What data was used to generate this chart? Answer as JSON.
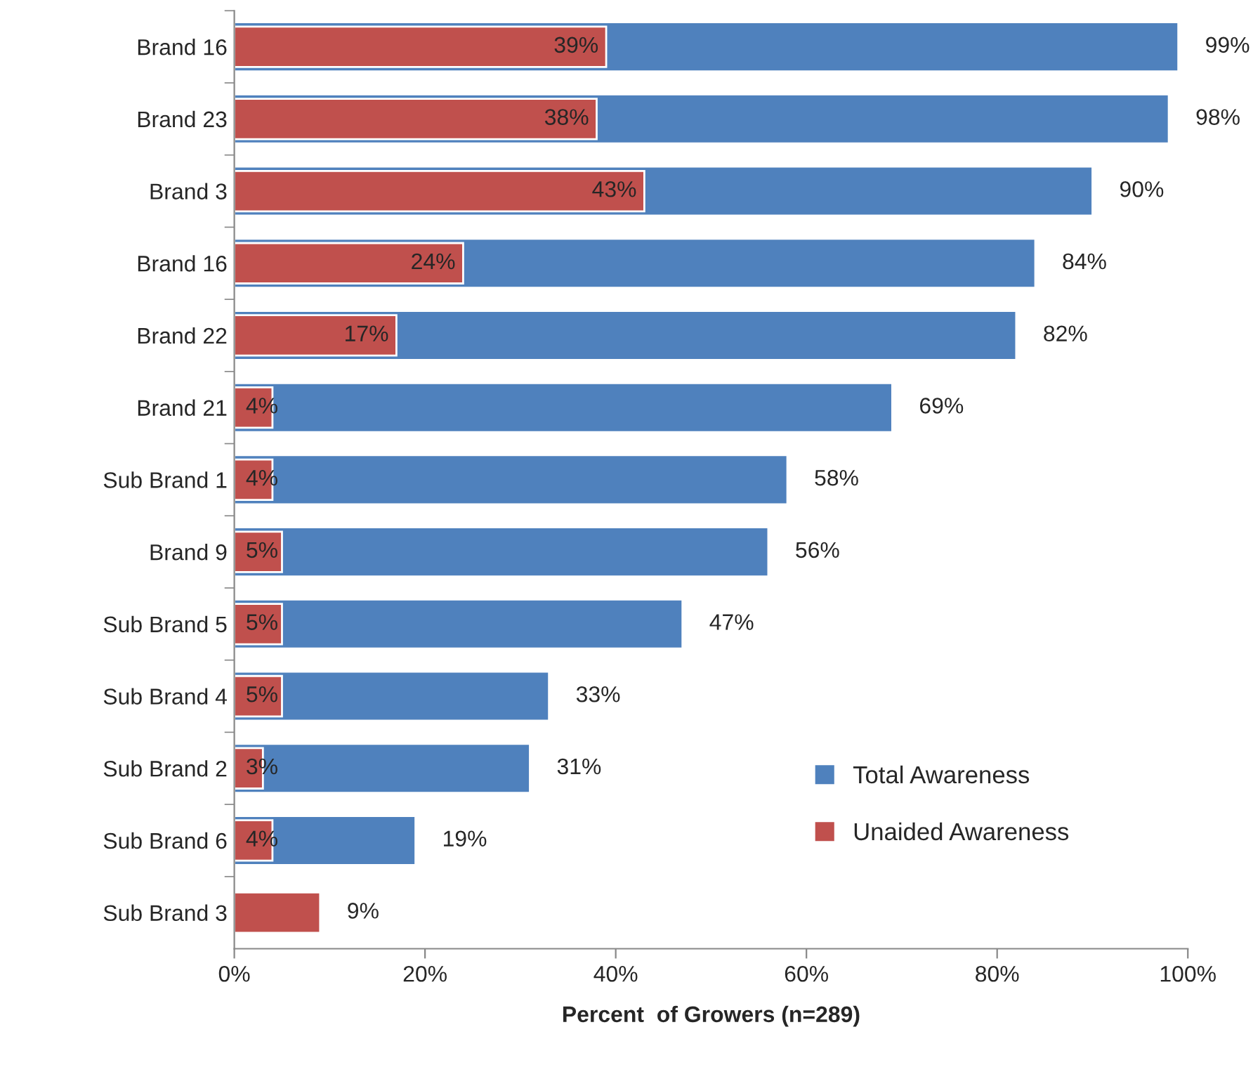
{
  "chart_data": {
    "type": "bar",
    "orientation": "horizontal",
    "xlabel": "Percent  of Growers (n=289)",
    "categories": [
      "Brand 16",
      "Brand 23",
      "Brand 3",
      "Brand 16",
      "Brand 22",
      "Brand 21",
      "Sub Brand 1",
      "Brand 9",
      "Sub Brand 5",
      "Sub Brand 4",
      "Sub Brand 2",
      "Sub Brand 6",
      "Sub Brand 3"
    ],
    "series": [
      {
        "name": "Total Awareness",
        "color": "#4f81bd",
        "values": [
          99,
          98,
          90,
          84,
          82,
          69,
          58,
          56,
          47,
          33,
          31,
          19,
          null
        ],
        "value_labels": [
          "99%",
          "98%",
          "90%",
          "84%",
          "82%",
          "69%",
          "58%",
          "56%",
          "47%",
          "33%",
          "31%",
          "19%",
          null
        ]
      },
      {
        "name": "Unaided Awareness",
        "color": "#c0504d",
        "values": [
          39,
          38,
          43,
          24,
          17,
          4,
          4,
          5,
          5,
          5,
          3,
          4,
          9
        ],
        "value_labels": [
          "39%",
          "38%",
          "43%",
          "24%",
          "17%",
          "4%",
          "4%",
          "5%",
          "5%",
          "5%",
          "3%",
          "4%",
          "9%"
        ]
      }
    ],
    "xlim": [
      0,
      100
    ],
    "xticks": [
      {
        "value": 0,
        "label": "0%"
      },
      {
        "value": 20,
        "label": "20%"
      },
      {
        "value": 40,
        "label": "40%"
      },
      {
        "value": 60,
        "label": "60%"
      },
      {
        "value": 80,
        "label": "80%"
      },
      {
        "value": 100,
        "label": "100%"
      }
    ],
    "legend": "bottom right",
    "grid": false
  }
}
